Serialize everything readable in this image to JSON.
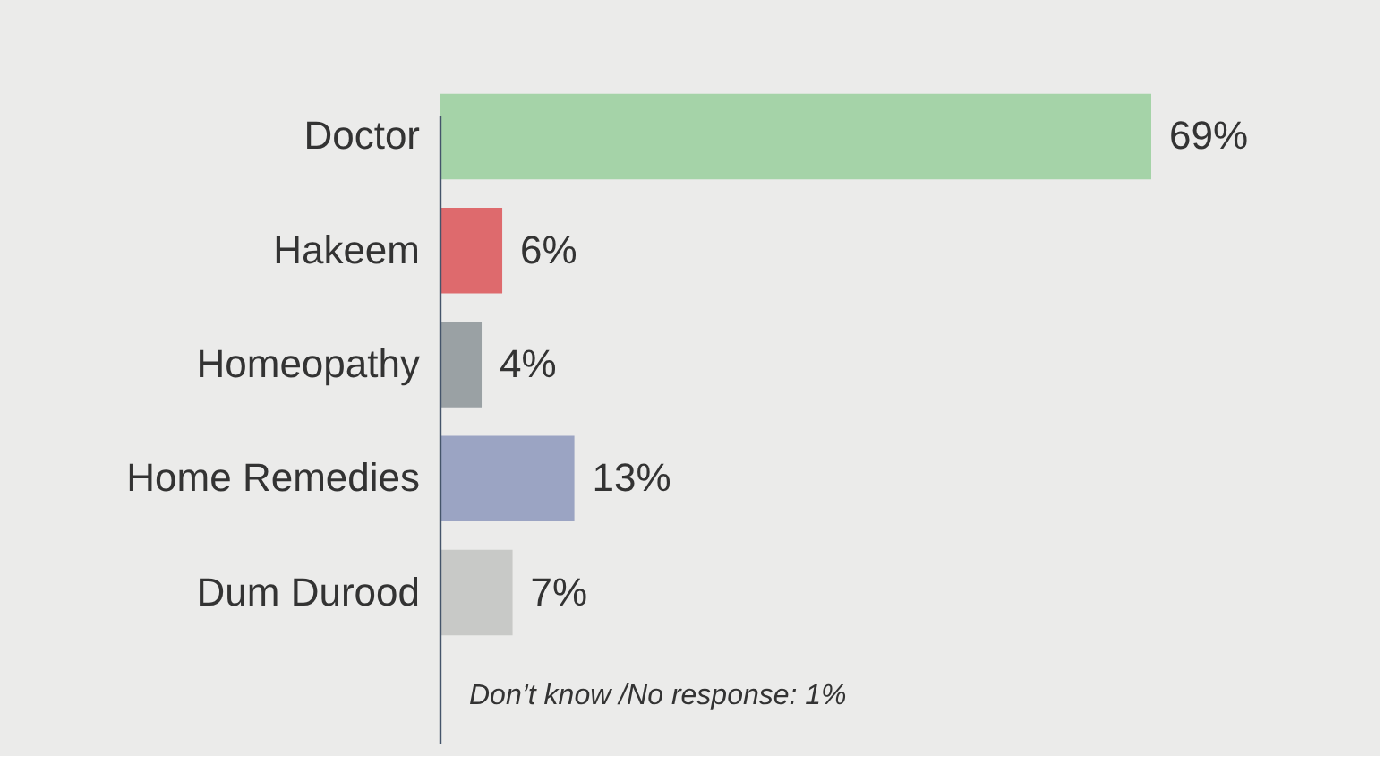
{
  "chart_data": {
    "type": "bar",
    "orientation": "horizontal",
    "categories": [
      "Doctor",
      "Hakeem",
      "Homeopathy",
      "Home Remedies",
      "Dum Durood"
    ],
    "values": [
      69,
      6,
      4,
      13,
      7
    ],
    "colors": [
      "#a5d3a8",
      "#de6a6d",
      "#9aa1a4",
      "#9ba4c3",
      "#c8c9c7"
    ],
    "value_labels": [
      "69%",
      "6%",
      "4%",
      "13%",
      "7%"
    ],
    "annotations": [
      "Don’t know /No response: 1%"
    ],
    "grid": false,
    "legend": false
  }
}
